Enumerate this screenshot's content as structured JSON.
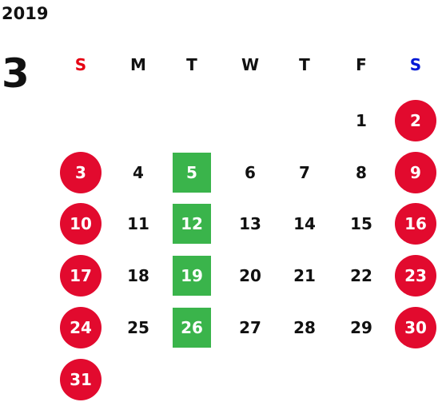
{
  "calendar": {
    "year": "2019",
    "month": "3",
    "weekdays": [
      "S",
      "M",
      "T",
      "W",
      "T",
      "F",
      "S"
    ],
    "colors": {
      "text": "#111111",
      "sunday_header": "#e60012",
      "saturday_header": "#0018d6",
      "holiday_circle": "#e20a2e",
      "marked_day": "#3ab44b"
    },
    "days": [
      {
        "label": "1",
        "week": 0,
        "weekday": 5,
        "style": "plain"
      },
      {
        "label": "2",
        "week": 0,
        "weekday": 6,
        "style": "weekend"
      },
      {
        "label": "3",
        "week": 1,
        "weekday": 0,
        "style": "weekend"
      },
      {
        "label": "4",
        "week": 1,
        "weekday": 1,
        "style": "plain"
      },
      {
        "label": "5",
        "week": 1,
        "weekday": 2,
        "style": "marked"
      },
      {
        "label": "6",
        "week": 1,
        "weekday": 3,
        "style": "plain"
      },
      {
        "label": "7",
        "week": 1,
        "weekday": 4,
        "style": "plain"
      },
      {
        "label": "8",
        "week": 1,
        "weekday": 5,
        "style": "plain"
      },
      {
        "label": "9",
        "week": 1,
        "weekday": 6,
        "style": "weekend"
      },
      {
        "label": "10",
        "week": 2,
        "weekday": 0,
        "style": "weekend"
      },
      {
        "label": "11",
        "week": 2,
        "weekday": 1,
        "style": "plain"
      },
      {
        "label": "12",
        "week": 2,
        "weekday": 2,
        "style": "marked"
      },
      {
        "label": "13",
        "week": 2,
        "weekday": 3,
        "style": "plain"
      },
      {
        "label": "14",
        "week": 2,
        "weekday": 4,
        "style": "plain"
      },
      {
        "label": "15",
        "week": 2,
        "weekday": 5,
        "style": "plain"
      },
      {
        "label": "16",
        "week": 2,
        "weekday": 6,
        "style": "weekend"
      },
      {
        "label": "17",
        "week": 3,
        "weekday": 0,
        "style": "weekend"
      },
      {
        "label": "18",
        "week": 3,
        "weekday": 1,
        "style": "plain"
      },
      {
        "label": "19",
        "week": 3,
        "weekday": 2,
        "style": "marked"
      },
      {
        "label": "20",
        "week": 3,
        "weekday": 3,
        "style": "plain"
      },
      {
        "label": "21",
        "week": 3,
        "weekday": 4,
        "style": "plain"
      },
      {
        "label": "22",
        "week": 3,
        "weekday": 5,
        "style": "plain"
      },
      {
        "label": "23",
        "week": 3,
        "weekday": 6,
        "style": "weekend"
      },
      {
        "label": "24",
        "week": 4,
        "weekday": 0,
        "style": "weekend"
      },
      {
        "label": "25",
        "week": 4,
        "weekday": 1,
        "style": "plain"
      },
      {
        "label": "26",
        "week": 4,
        "weekday": 2,
        "style": "marked"
      },
      {
        "label": "27",
        "week": 4,
        "weekday": 3,
        "style": "plain"
      },
      {
        "label": "28",
        "week": 4,
        "weekday": 4,
        "style": "plain"
      },
      {
        "label": "29",
        "week": 4,
        "weekday": 5,
        "style": "plain"
      },
      {
        "label": "30",
        "week": 4,
        "weekday": 6,
        "style": "weekend"
      },
      {
        "label": "31",
        "week": 5,
        "weekday": 0,
        "style": "weekend"
      }
    ]
  }
}
